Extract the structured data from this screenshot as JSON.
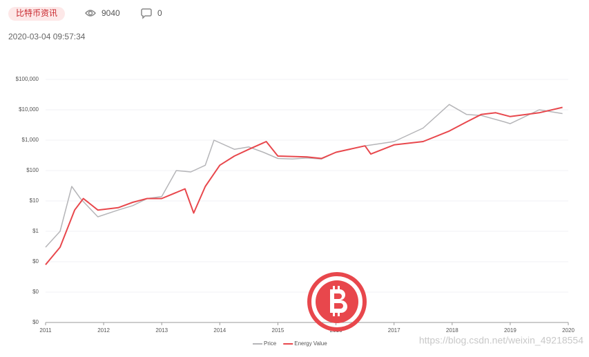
{
  "header": {
    "tag": "比特币资讯",
    "views": 9040,
    "comments": 0,
    "date": "2020-03-04 09:57:34"
  },
  "watermark": "https://blog.csdn.net/weixin_49218554",
  "chart_data": {
    "type": "line",
    "log_scale": true,
    "grid": true,
    "legend": "bottom",
    "xlim": [
      2011,
      2020
    ],
    "xticks": [
      2011,
      2012,
      2013,
      2014,
      2015,
      2016,
      2017,
      2018,
      2019,
      2020
    ],
    "ylim": [
      0.001,
      100000
    ],
    "yticks": [
      {
        "value": 0.001,
        "label": "$0"
      },
      {
        "value": 0.01,
        "label": "$0"
      },
      {
        "value": 0.1,
        "label": "$0"
      },
      {
        "value": 1,
        "label": "$1"
      },
      {
        "value": 10,
        "label": "$10"
      },
      {
        "value": 100,
        "label": "$100"
      },
      {
        "value": 1000,
        "label": "$1,000"
      },
      {
        "value": 10000,
        "label": "$10,000"
      },
      {
        "value": 100000,
        "label": "$100,000"
      }
    ],
    "series": [
      {
        "name": "Price",
        "color": "#b5b5b8",
        "x": [
          2011.0,
          2011.25,
          2011.45,
          2011.6,
          2011.9,
          2012.25,
          2012.5,
          2012.75,
          2013.0,
          2013.25,
          2013.5,
          2013.75,
          2013.9,
          2014.25,
          2014.5,
          2014.75,
          2015.0,
          2015.25,
          2015.5,
          2015.75,
          2016.0,
          2016.5,
          2017.0,
          2017.5,
          2017.95,
          2018.25,
          2018.5,
          2018.9,
          2019.0,
          2019.5,
          2019.9
        ],
        "values": [
          0.3,
          1,
          30,
          12,
          3,
          5,
          7,
          12,
          14,
          100,
          90,
          150,
          1000,
          500,
          600,
          400,
          250,
          240,
          260,
          240,
          400,
          650,
          900,
          2500,
          15000,
          7000,
          6500,
          4000,
          3500,
          10000,
          7500
        ]
      },
      {
        "name": "Energy Value",
        "color": "#e8474c",
        "x": [
          2011.0,
          2011.25,
          2011.5,
          2011.65,
          2011.9,
          2012.25,
          2012.5,
          2012.75,
          2013.0,
          2013.4,
          2013.55,
          2013.75,
          2014.0,
          2014.25,
          2014.5,
          2014.8,
          2015.0,
          2015.5,
          2015.75,
          2016.0,
          2016.5,
          2016.6,
          2017.0,
          2017.5,
          2017.95,
          2018.25,
          2018.5,
          2018.75,
          2019.0,
          2019.5,
          2019.9
        ],
        "values": [
          0.08,
          0.3,
          5,
          12,
          5,
          6,
          9,
          12,
          12,
          25,
          4,
          30,
          150,
          300,
          500,
          900,
          300,
          280,
          250,
          400,
          650,
          350,
          700,
          900,
          2000,
          4000,
          7000,
          8000,
          6000,
          8000,
          12000
        ]
      }
    ]
  }
}
